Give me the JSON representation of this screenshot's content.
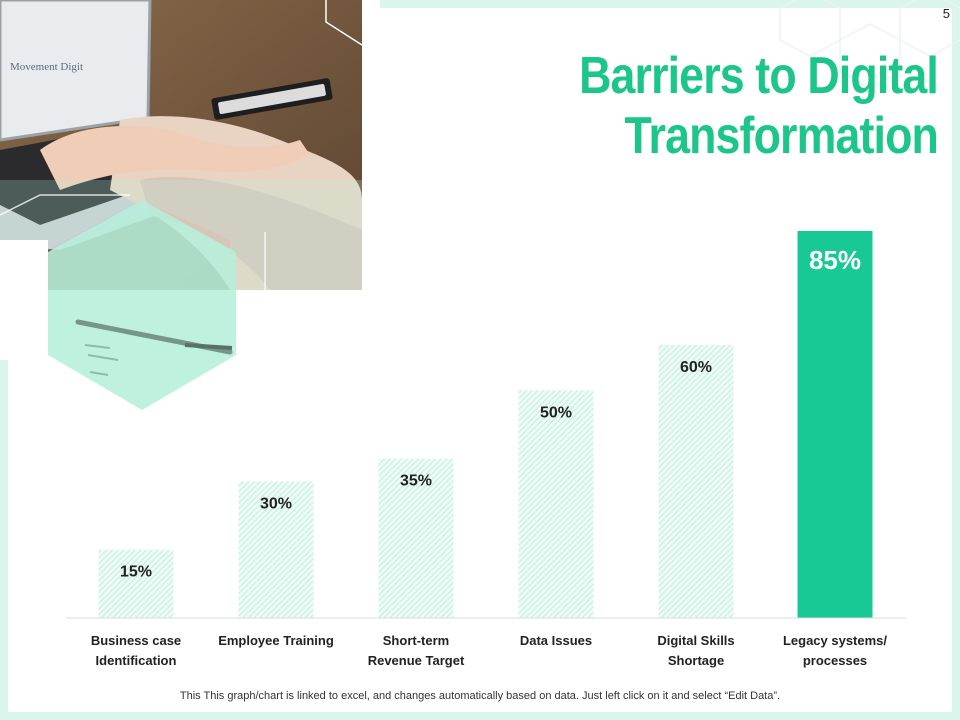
{
  "page_number": "5",
  "title_lines": [
    "Barriers to Digital",
    "Transformation"
  ],
  "footer_note": "This This graph/chart is linked to excel, and changes automatically based on data. Just left click on it and select “Edit Data”.",
  "colors": {
    "accent": "#1cc68b",
    "bar_pattern": "#bfeee0",
    "highlight_bar": "#19c995",
    "frame": "#d9f5ec"
  },
  "photo": {
    "icon": "laptop-photo"
  },
  "chart_data": {
    "type": "bar",
    "title": "Barriers to Digital Transformation",
    "categories": [
      [
        "Business case",
        "Identification"
      ],
      [
        "Employee Training"
      ],
      [
        "Short-term",
        "Revenue Target"
      ],
      [
        "Data Issues"
      ],
      [
        "Digital Skills",
        "Shortage"
      ],
      [
        "Legacy systems/",
        "processes"
      ]
    ],
    "values": [
      15,
      30,
      35,
      50,
      60,
      85
    ],
    "labels": [
      "15%",
      "30%",
      "35%",
      "50%",
      "60%",
      "85%"
    ],
    "highlight_index": 5,
    "ylim": [
      0,
      85
    ],
    "grid": false
  }
}
